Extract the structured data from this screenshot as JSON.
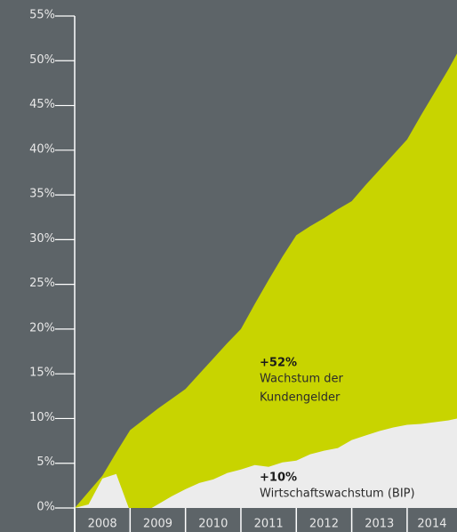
{
  "chart_data": {
    "type": "area",
    "x": [
      2008,
      2008.25,
      2008.5,
      2008.75,
      2009,
      2009.25,
      2009.5,
      2009.75,
      2010,
      2010.25,
      2010.5,
      2010.75,
      2011,
      2011.25,
      2011.5,
      2011.75,
      2012,
      2012.25,
      2012.5,
      2012.75,
      2013,
      2013.25,
      2013.5,
      2013.75,
      2014,
      2014.25,
      2014.5,
      2014.75,
      2014.9
    ],
    "categories": [
      "2008",
      "2009",
      "2010",
      "2011",
      "2012",
      "2013",
      "2014"
    ],
    "series": [
      {
        "color": "#c8d400",
        "values": [
          0,
          1.8,
          3.6,
          6.2,
          8.7,
          9.9,
          11.1,
          12.2,
          13.3,
          15,
          16.7,
          18.4,
          20,
          22.8,
          25.5,
          28.1,
          30.5,
          31.5,
          32.4,
          33.4,
          34.3,
          36.1,
          37.8,
          39.5,
          41.2,
          43.9,
          46.5,
          49.1,
          50.8
        ]
      },
      {
        "color": "#ececec",
        "values": [
          0,
          0.4,
          3.3,
          3.8,
          -0.4,
          -0.5,
          0.4,
          1.3,
          2.1,
          2.8,
          3.2,
          3.9,
          4.3,
          4.8,
          4.6,
          5.1,
          5.3,
          6.0,
          6.4,
          6.7,
          7.6,
          8.1,
          8.6,
          9.0,
          9.3,
          9.4,
          9.6,
          9.8,
          10
        ]
      }
    ],
    "annotations": [
      {
        "value_label": "+52%",
        "lines": [
          "Wachstum der",
          "Kundengelder"
        ]
      },
      {
        "value_label": "+10%",
        "lines": [
          "Wirtschaftswachstum (BIP)"
        ]
      }
    ],
    "xlim": [
      2008,
      2014.9
    ],
    "ylim": [
      0,
      55
    ],
    "yticks": [
      {
        "value": 0,
        "label": "0%"
      },
      {
        "value": 5,
        "label": "5%"
      },
      {
        "value": 10,
        "label": "10%"
      },
      {
        "value": 15,
        "label": "15%"
      },
      {
        "value": 20,
        "label": "20%"
      },
      {
        "value": 25,
        "label": "25%"
      },
      {
        "value": 30,
        "label": "30%"
      },
      {
        "value": 35,
        "label": "35%"
      },
      {
        "value": 40,
        "label": "40%"
      },
      {
        "value": 45,
        "label": "45%"
      },
      {
        "value": 50,
        "label": "50%"
      },
      {
        "value": 55,
        "label": "55%"
      }
    ]
  }
}
